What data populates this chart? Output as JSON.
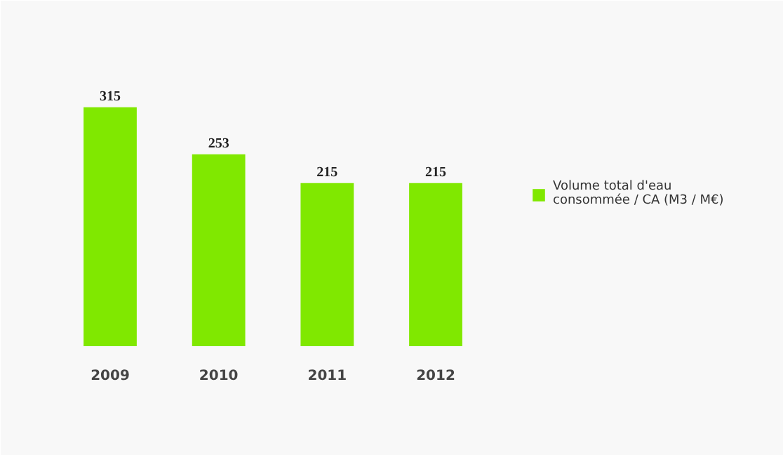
{
  "chart_data": {
    "type": "bar",
    "categories": [
      "2009",
      "2010",
      "2011",
      "2012"
    ],
    "series": [
      {
        "name": "Volume total d'eau consommée / CA (M3 / M€)",
        "color": "#80e800",
        "values": [
          315,
          253,
          215,
          215
        ]
      }
    ],
    "data_labels": true,
    "tick_labels": "x",
    "legend": "right",
    "grid": false
  }
}
